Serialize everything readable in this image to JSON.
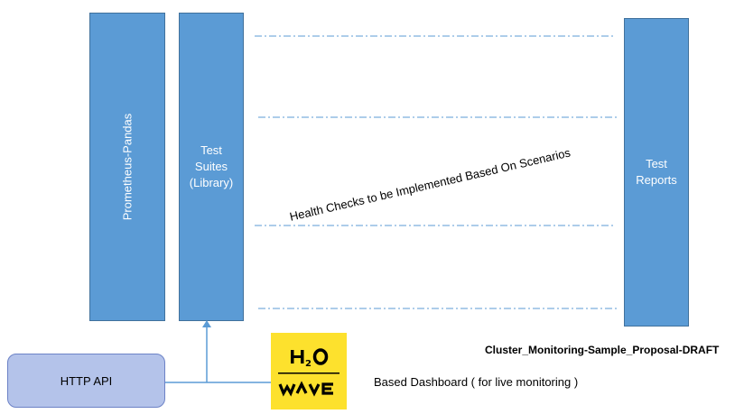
{
  "blocks": {
    "prometheus": {
      "label": "Prometheus-Pandas"
    },
    "test_suites": {
      "label_lines": [
        "Test",
        "Suites",
        "(Library)"
      ]
    },
    "test_reports": {
      "label_lines": [
        "Test",
        "Reports"
      ]
    }
  },
  "health_checks_label": "Health Checks to be Implemented Based On Scenarios",
  "http_api": {
    "label": "HTTP API"
  },
  "logo": {
    "top_text": "H2O",
    "bottom_text": "WAVE",
    "icon": "h2o-wave-logo"
  },
  "dashboard_caption": "Based Dashboard ( for live monitoring )",
  "draft_title": "Cluster_Monitoring-Sample_Proposal-DRAFT",
  "colors": {
    "block_fill": "#5b9bd5",
    "block_border": "#41719c",
    "api_fill": "#b4c3ea",
    "logo_fill": "#fde12d",
    "connector": "#5b9bd5"
  }
}
